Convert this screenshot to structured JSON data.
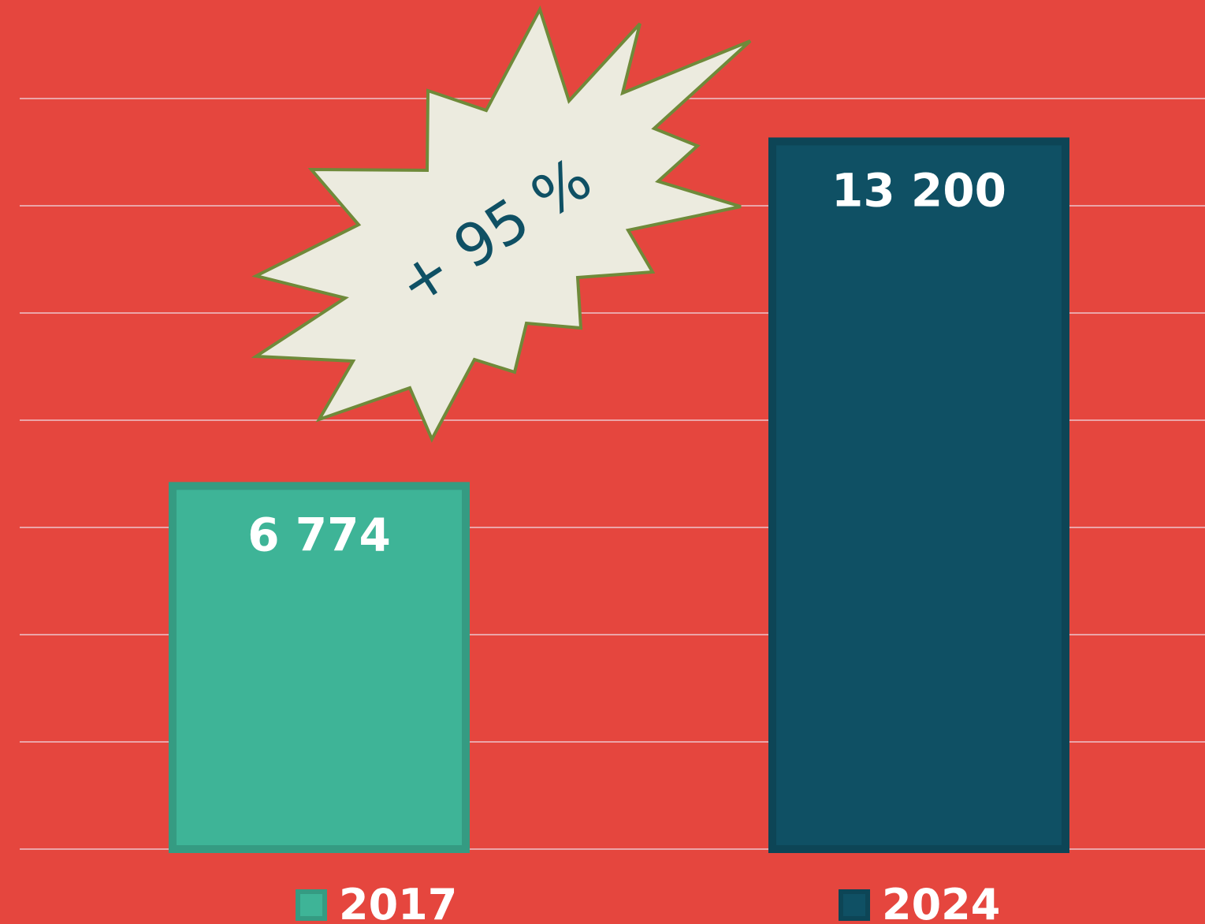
{
  "chart_data": {
    "type": "bar",
    "categories": [
      "2017",
      "2024"
    ],
    "values": [
      6774,
      13200
    ],
    "value_labels": [
      "6 774",
      "13 200"
    ],
    "colors": [
      "#3eb497",
      "#0f5064"
    ],
    "ylim": [
      0,
      14000
    ],
    "yticks": [
      0,
      2000,
      4000,
      6000,
      8000,
      10000,
      12000,
      14000
    ],
    "grid": true,
    "annotation": "+ 95 %"
  }
}
